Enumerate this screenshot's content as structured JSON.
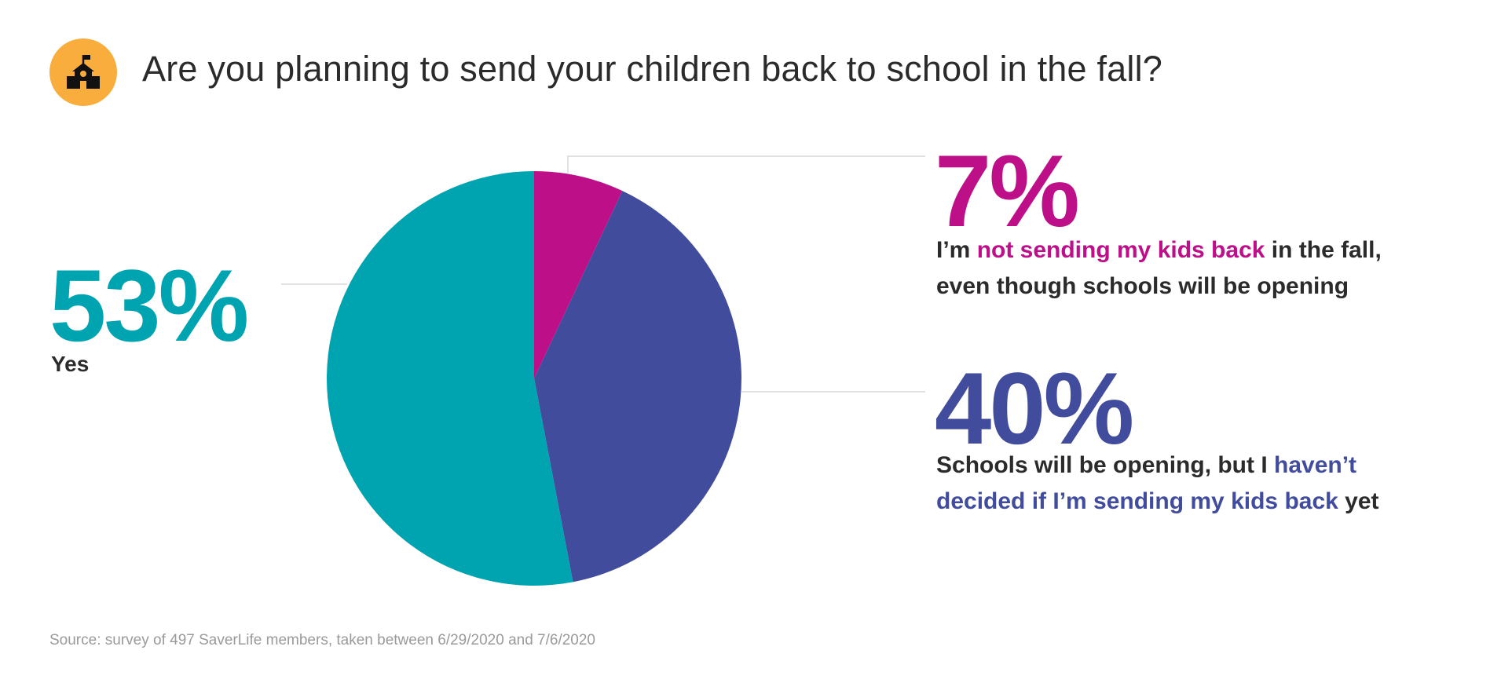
{
  "header": {
    "title": "Are you planning to send your children back to school in the fall?",
    "icon": "school-icon",
    "icon_bg": "#f9ad3c"
  },
  "chart_data": {
    "type": "pie",
    "start": "top, clockwise",
    "slices": [
      {
        "value": 7,
        "pct_label": "7%",
        "label_parts": [
          {
            "text": "I’m ",
            "hl": false
          },
          {
            "text": "not sending my kids back",
            "hl": true
          },
          {
            "text": " in the fall,",
            "hl": false
          },
          {
            "br": true
          },
          {
            "text": "even though schools will be opening",
            "hl": false
          }
        ],
        "color": "#bd1088"
      },
      {
        "value": 40,
        "pct_label": "40%",
        "label_parts": [
          {
            "text": "Schools will be opening, but I ",
            "hl": false
          },
          {
            "text": "haven’t",
            "hl": true
          },
          {
            "br": true
          },
          {
            "text": "decided if I’m sending my kids back",
            "hl": true
          },
          {
            "text": " yet",
            "hl": false
          }
        ],
        "color": "#414d9c"
      },
      {
        "value": 53,
        "pct_label": "53%",
        "label_parts": [
          {
            "text": "Yes",
            "hl": false
          }
        ],
        "color": "#00a4b0"
      }
    ]
  },
  "footer": {
    "source": "Source: survey of 497 SaverLife members, taken between 6/29/2020 and 7/6/2020"
  }
}
